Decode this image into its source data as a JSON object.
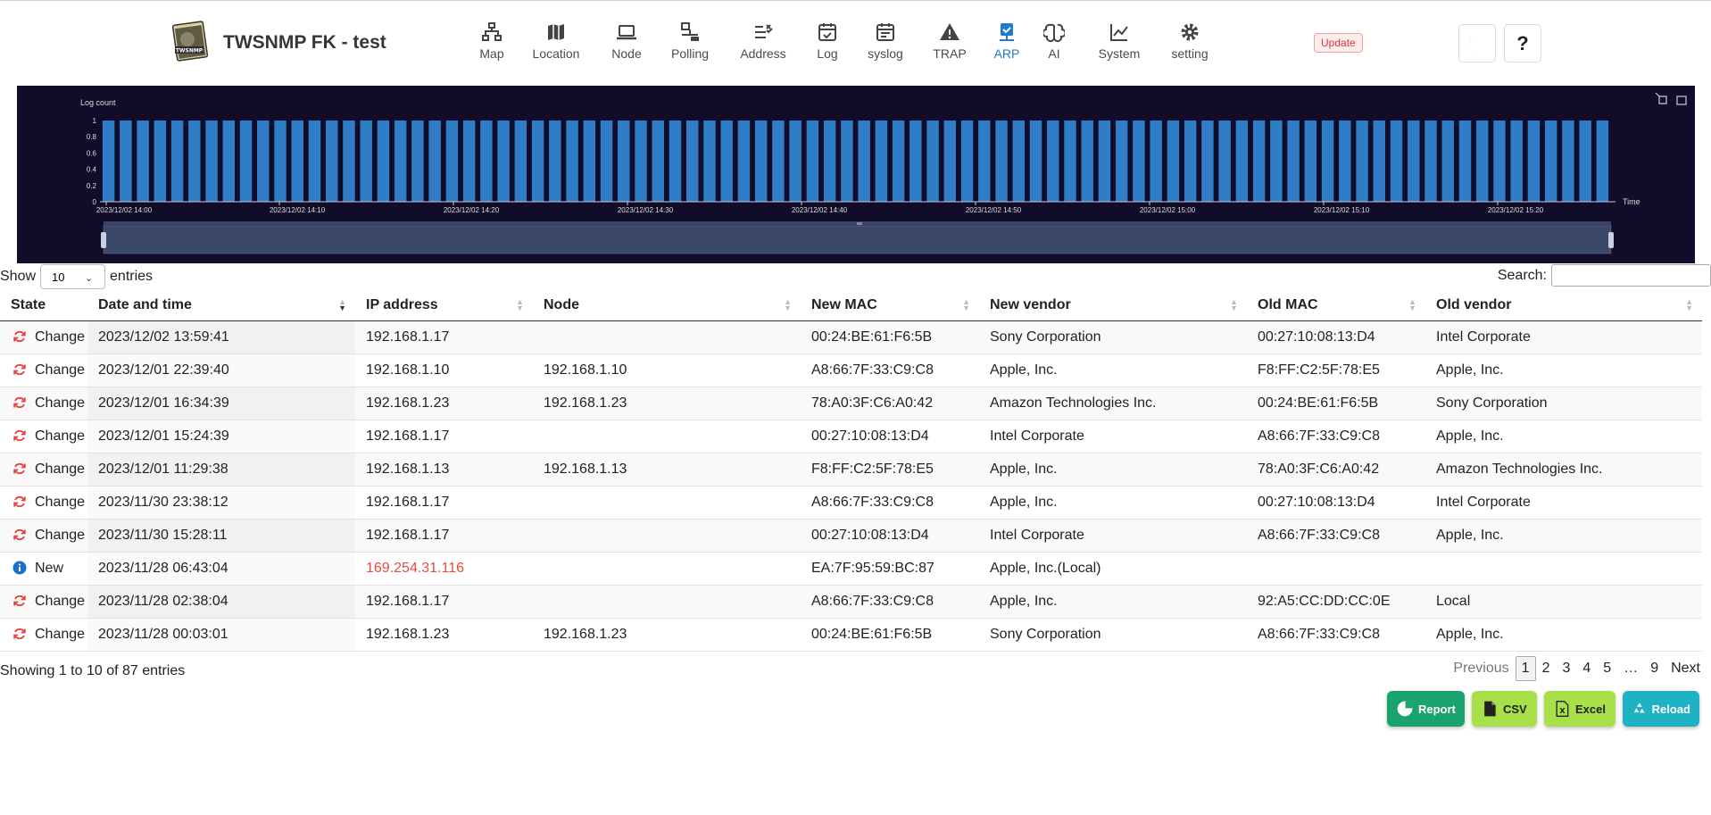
{
  "app": {
    "title": "TWSNMP FK - test",
    "logo_text": "TWSNMP"
  },
  "nav": [
    {
      "label": "Map",
      "icon": "map-network-icon"
    },
    {
      "label": "Location",
      "icon": "location-map-icon"
    },
    {
      "label": "Node",
      "icon": "laptop-icon"
    },
    {
      "label": "Polling",
      "icon": "polling-icon"
    },
    {
      "label": "Address",
      "icon": "address-list-icon"
    },
    {
      "label": "Log",
      "icon": "calendar-check-icon"
    },
    {
      "label": "syslog",
      "icon": "calendar-icon"
    },
    {
      "label": "TRAP",
      "icon": "warning-icon"
    },
    {
      "label": "ARP",
      "icon": "arp-icon",
      "active": true
    },
    {
      "label": "AI",
      "icon": "brain-icon"
    },
    {
      "label": "System",
      "icon": "chart-line-icon"
    },
    {
      "label": "setting",
      "icon": "gear-icon"
    }
  ],
  "header": {
    "update_label": "Update",
    "theme_icon": "moon-icon",
    "help_label": "?"
  },
  "chart_data": {
    "type": "bar",
    "ylabel": "Log count",
    "xlabel": "Time",
    "ylim": [
      0,
      1
    ],
    "yticks": [
      "0",
      "0.2",
      "0.4",
      "0.6",
      "0.8",
      "1"
    ],
    "xticks": [
      "2023/12/02 14:00",
      "2023/12/02 14:10",
      "2023/12/02 14:20",
      "2023/12/02 14:30",
      "2023/12/02 14:40",
      "2023/12/02 14:50",
      "2023/12/02 15:00",
      "2023/12/02 15:10",
      "2023/12/02 15:20"
    ],
    "x_start": "2023/12/02 14:00",
    "x_end": "2023/12/02 15:27",
    "values": [
      1,
      1,
      1,
      1,
      1,
      1,
      1,
      1,
      1,
      1,
      1,
      1,
      1,
      1,
      1,
      1,
      1,
      1,
      1,
      1,
      1,
      1,
      1,
      1,
      1,
      1,
      1,
      1,
      1,
      1,
      1,
      1,
      1,
      1,
      1,
      1,
      1,
      1,
      1,
      1,
      1,
      1,
      1,
      1,
      1,
      1,
      1,
      1,
      1,
      1,
      1,
      1,
      1,
      1,
      1,
      1,
      1,
      1,
      1,
      1,
      1,
      1,
      1,
      1,
      1,
      1,
      1,
      1,
      1,
      1,
      1,
      1,
      1,
      1,
      1,
      1,
      1,
      1,
      1,
      1,
      1,
      1,
      1,
      1,
      1,
      1,
      1,
      1
    ],
    "bar_color": "#2e7dc6",
    "background": "#100c2a",
    "grid": false,
    "toolbox_icons": [
      "zoom-icon",
      "save-image-icon"
    ]
  },
  "table": {
    "show_label": "Show",
    "entries_label": "entries",
    "page_size": "10",
    "search_label": "Search:",
    "search_value": "",
    "columns": [
      "State",
      "Date and time",
      "IP address",
      "Node",
      "New MAC",
      "New vendor",
      "Old MAC",
      "Old vendor"
    ],
    "rows": [
      {
        "state": "Change",
        "state_icon": "refresh-red-icon",
        "date": "2023/12/02 13:59:41",
        "ip": "192.168.1.17",
        "node": "",
        "new_mac": "00:24:BE:61:F6:5B",
        "new_vendor": "Sony Corporation",
        "old_mac": "00:27:10:08:13:D4",
        "old_vendor": "Intel Corporate"
      },
      {
        "state": "Change",
        "state_icon": "refresh-red-icon",
        "date": "2023/12/01 22:39:40",
        "ip": "192.168.1.10",
        "node": "192.168.1.10",
        "new_mac": "A8:66:7F:33:C9:C8",
        "new_vendor": "Apple, Inc.",
        "old_mac": "F8:FF:C2:5F:78:E5",
        "old_vendor": "Apple, Inc."
      },
      {
        "state": "Change",
        "state_icon": "refresh-red-icon",
        "date": "2023/12/01 16:34:39",
        "ip": "192.168.1.23",
        "node": "192.168.1.23",
        "new_mac": "78:A0:3F:C6:A0:42",
        "new_vendor": "Amazon Technologies Inc.",
        "old_mac": "00:24:BE:61:F6:5B",
        "old_vendor": "Sony Corporation"
      },
      {
        "state": "Change",
        "state_icon": "refresh-red-icon",
        "date": "2023/12/01 15:24:39",
        "ip": "192.168.1.17",
        "node": "",
        "new_mac": "00:27:10:08:13:D4",
        "new_vendor": "Intel Corporate",
        "old_mac": "A8:66:7F:33:C9:C8",
        "old_vendor": "Apple, Inc."
      },
      {
        "state": "Change",
        "state_icon": "refresh-red-icon",
        "date": "2023/12/01 11:29:38",
        "ip": "192.168.1.13",
        "node": "192.168.1.13",
        "new_mac": "F8:FF:C2:5F:78:E5",
        "new_vendor": "Apple, Inc.",
        "old_mac": "78:A0:3F:C6:A0:42",
        "old_vendor": "Amazon Technologies Inc."
      },
      {
        "state": "Change",
        "state_icon": "refresh-red-icon",
        "date": "2023/11/30 23:38:12",
        "ip": "192.168.1.17",
        "node": "",
        "new_mac": "A8:66:7F:33:C9:C8",
        "new_vendor": "Apple, Inc.",
        "old_mac": "00:27:10:08:13:D4",
        "old_vendor": "Intel Corporate"
      },
      {
        "state": "Change",
        "state_icon": "refresh-red-icon",
        "date": "2023/11/30 15:28:11",
        "ip": "192.168.1.17",
        "node": "",
        "new_mac": "00:27:10:08:13:D4",
        "new_vendor": "Intel Corporate",
        "old_mac": "A8:66:7F:33:C9:C8",
        "old_vendor": "Apple, Inc."
      },
      {
        "state": "New",
        "state_icon": "info-blue-icon",
        "date": "2023/11/28 06:43:04",
        "ip": "169.254.31.116",
        "ip_color": "#e74c3c",
        "node": "",
        "new_mac": "EA:7F:95:59:BC:87",
        "new_vendor": "Apple, Inc.(Local)",
        "old_mac": "",
        "old_vendor": ""
      },
      {
        "state": "Change",
        "state_icon": "refresh-red-icon",
        "date": "2023/11/28 02:38:04",
        "ip": "192.168.1.17",
        "node": "",
        "new_mac": "A8:66:7F:33:C9:C8",
        "new_vendor": "Apple, Inc.",
        "old_mac": "92:A5:CC:DD:CC:0E",
        "old_vendor": "Local"
      },
      {
        "state": "Change",
        "state_icon": "refresh-red-icon",
        "date": "2023/11/28 00:03:01",
        "ip": "192.168.1.23",
        "node": "192.168.1.23",
        "new_mac": "00:24:BE:61:F6:5B",
        "new_vendor": "Sony Corporation",
        "old_mac": "A8:66:7F:33:C9:C8",
        "old_vendor": "Apple, Inc."
      }
    ],
    "info": "Showing 1 to 10 of 87 entries"
  },
  "pagination": {
    "previous": "Previous",
    "pages": [
      "1",
      "2",
      "3",
      "4",
      "5",
      "…",
      "9"
    ],
    "current": "1",
    "next": "Next"
  },
  "actions": {
    "report": "Report",
    "csv": "CSV",
    "excel": "Excel",
    "reload": "Reload"
  }
}
